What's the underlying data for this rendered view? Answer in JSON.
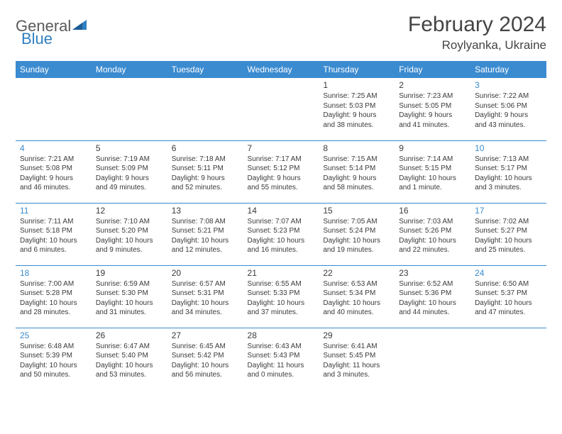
{
  "brand": {
    "word1": "General",
    "word2": "Blue"
  },
  "title": "February 2024",
  "location": "Roylyanka, Ukraine",
  "colors": {
    "header_bg": "#3b8bd0",
    "header_text": "#ffffff",
    "cell_border": "#3b8bd0",
    "text": "#3a3a3a",
    "weekend_daynum": "#3b8bd0",
    "logo_gray": "#5a5a5a",
    "logo_blue": "#2f7fc2",
    "background": "#ffffff"
  },
  "typography": {
    "title_fontsize": 30,
    "location_fontsize": 17,
    "weekday_fontsize": 12,
    "daynum_fontsize": 12,
    "body_fontsize": 10
  },
  "weekdays": [
    "Sunday",
    "Monday",
    "Tuesday",
    "Wednesday",
    "Thursday",
    "Friday",
    "Saturday"
  ],
  "weekend_cols": [
    0,
    6
  ],
  "weeks": [
    [
      null,
      null,
      null,
      null,
      {
        "n": "1",
        "sr": "Sunrise: 7:25 AM",
        "ss": "Sunset: 5:03 PM",
        "d1": "Daylight: 9 hours",
        "d2": "and 38 minutes."
      },
      {
        "n": "2",
        "sr": "Sunrise: 7:23 AM",
        "ss": "Sunset: 5:05 PM",
        "d1": "Daylight: 9 hours",
        "d2": "and 41 minutes."
      },
      {
        "n": "3",
        "sr": "Sunrise: 7:22 AM",
        "ss": "Sunset: 5:06 PM",
        "d1": "Daylight: 9 hours",
        "d2": "and 43 minutes."
      }
    ],
    [
      {
        "n": "4",
        "sr": "Sunrise: 7:21 AM",
        "ss": "Sunset: 5:08 PM",
        "d1": "Daylight: 9 hours",
        "d2": "and 46 minutes."
      },
      {
        "n": "5",
        "sr": "Sunrise: 7:19 AM",
        "ss": "Sunset: 5:09 PM",
        "d1": "Daylight: 9 hours",
        "d2": "and 49 minutes."
      },
      {
        "n": "6",
        "sr": "Sunrise: 7:18 AM",
        "ss": "Sunset: 5:11 PM",
        "d1": "Daylight: 9 hours",
        "d2": "and 52 minutes."
      },
      {
        "n": "7",
        "sr": "Sunrise: 7:17 AM",
        "ss": "Sunset: 5:12 PM",
        "d1": "Daylight: 9 hours",
        "d2": "and 55 minutes."
      },
      {
        "n": "8",
        "sr": "Sunrise: 7:15 AM",
        "ss": "Sunset: 5:14 PM",
        "d1": "Daylight: 9 hours",
        "d2": "and 58 minutes."
      },
      {
        "n": "9",
        "sr": "Sunrise: 7:14 AM",
        "ss": "Sunset: 5:15 PM",
        "d1": "Daylight: 10 hours",
        "d2": "and 1 minute."
      },
      {
        "n": "10",
        "sr": "Sunrise: 7:13 AM",
        "ss": "Sunset: 5:17 PM",
        "d1": "Daylight: 10 hours",
        "d2": "and 3 minutes."
      }
    ],
    [
      {
        "n": "11",
        "sr": "Sunrise: 7:11 AM",
        "ss": "Sunset: 5:18 PM",
        "d1": "Daylight: 10 hours",
        "d2": "and 6 minutes."
      },
      {
        "n": "12",
        "sr": "Sunrise: 7:10 AM",
        "ss": "Sunset: 5:20 PM",
        "d1": "Daylight: 10 hours",
        "d2": "and 9 minutes."
      },
      {
        "n": "13",
        "sr": "Sunrise: 7:08 AM",
        "ss": "Sunset: 5:21 PM",
        "d1": "Daylight: 10 hours",
        "d2": "and 12 minutes."
      },
      {
        "n": "14",
        "sr": "Sunrise: 7:07 AM",
        "ss": "Sunset: 5:23 PM",
        "d1": "Daylight: 10 hours",
        "d2": "and 16 minutes."
      },
      {
        "n": "15",
        "sr": "Sunrise: 7:05 AM",
        "ss": "Sunset: 5:24 PM",
        "d1": "Daylight: 10 hours",
        "d2": "and 19 minutes."
      },
      {
        "n": "16",
        "sr": "Sunrise: 7:03 AM",
        "ss": "Sunset: 5:26 PM",
        "d1": "Daylight: 10 hours",
        "d2": "and 22 minutes."
      },
      {
        "n": "17",
        "sr": "Sunrise: 7:02 AM",
        "ss": "Sunset: 5:27 PM",
        "d1": "Daylight: 10 hours",
        "d2": "and 25 minutes."
      }
    ],
    [
      {
        "n": "18",
        "sr": "Sunrise: 7:00 AM",
        "ss": "Sunset: 5:28 PM",
        "d1": "Daylight: 10 hours",
        "d2": "and 28 minutes."
      },
      {
        "n": "19",
        "sr": "Sunrise: 6:59 AM",
        "ss": "Sunset: 5:30 PM",
        "d1": "Daylight: 10 hours",
        "d2": "and 31 minutes."
      },
      {
        "n": "20",
        "sr": "Sunrise: 6:57 AM",
        "ss": "Sunset: 5:31 PM",
        "d1": "Daylight: 10 hours",
        "d2": "and 34 minutes."
      },
      {
        "n": "21",
        "sr": "Sunrise: 6:55 AM",
        "ss": "Sunset: 5:33 PM",
        "d1": "Daylight: 10 hours",
        "d2": "and 37 minutes."
      },
      {
        "n": "22",
        "sr": "Sunrise: 6:53 AM",
        "ss": "Sunset: 5:34 PM",
        "d1": "Daylight: 10 hours",
        "d2": "and 40 minutes."
      },
      {
        "n": "23",
        "sr": "Sunrise: 6:52 AM",
        "ss": "Sunset: 5:36 PM",
        "d1": "Daylight: 10 hours",
        "d2": "and 44 minutes."
      },
      {
        "n": "24",
        "sr": "Sunrise: 6:50 AM",
        "ss": "Sunset: 5:37 PM",
        "d1": "Daylight: 10 hours",
        "d2": "and 47 minutes."
      }
    ],
    [
      {
        "n": "25",
        "sr": "Sunrise: 6:48 AM",
        "ss": "Sunset: 5:39 PM",
        "d1": "Daylight: 10 hours",
        "d2": "and 50 minutes."
      },
      {
        "n": "26",
        "sr": "Sunrise: 6:47 AM",
        "ss": "Sunset: 5:40 PM",
        "d1": "Daylight: 10 hours",
        "d2": "and 53 minutes."
      },
      {
        "n": "27",
        "sr": "Sunrise: 6:45 AM",
        "ss": "Sunset: 5:42 PM",
        "d1": "Daylight: 10 hours",
        "d2": "and 56 minutes."
      },
      {
        "n": "28",
        "sr": "Sunrise: 6:43 AM",
        "ss": "Sunset: 5:43 PM",
        "d1": "Daylight: 11 hours",
        "d2": "and 0 minutes."
      },
      {
        "n": "29",
        "sr": "Sunrise: 6:41 AM",
        "ss": "Sunset: 5:45 PM",
        "d1": "Daylight: 11 hours",
        "d2": "and 3 minutes."
      },
      null,
      null
    ]
  ]
}
